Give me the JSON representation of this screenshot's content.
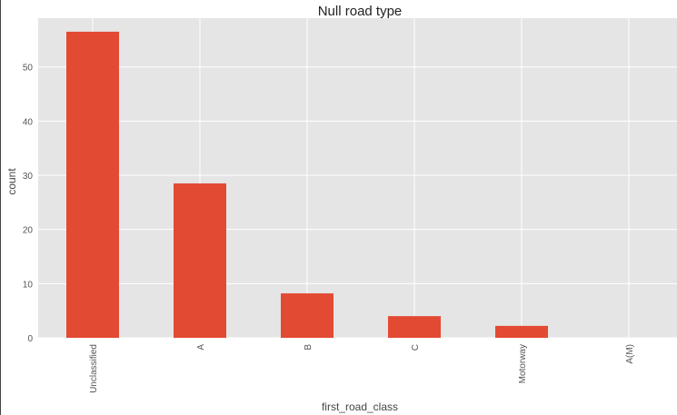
{
  "chart_data": {
    "type": "bar",
    "title": "Null road type",
    "xlabel": "first_road_class",
    "ylabel": "count",
    "categories": [
      "Unclassified",
      "A",
      "B",
      "C",
      "Motorway",
      "A(M)"
    ],
    "values": [
      56.5,
      28.5,
      8.2,
      4.0,
      2.2,
      0
    ],
    "ylim": [
      0,
      59
    ],
    "yticks": [
      0,
      10,
      20,
      30,
      40,
      50
    ],
    "grid": true,
    "colors": {
      "bar": "#E24A33",
      "plot_bg": "#E5E5E5",
      "grid": "#FFFFFF",
      "text": "#555555"
    }
  }
}
